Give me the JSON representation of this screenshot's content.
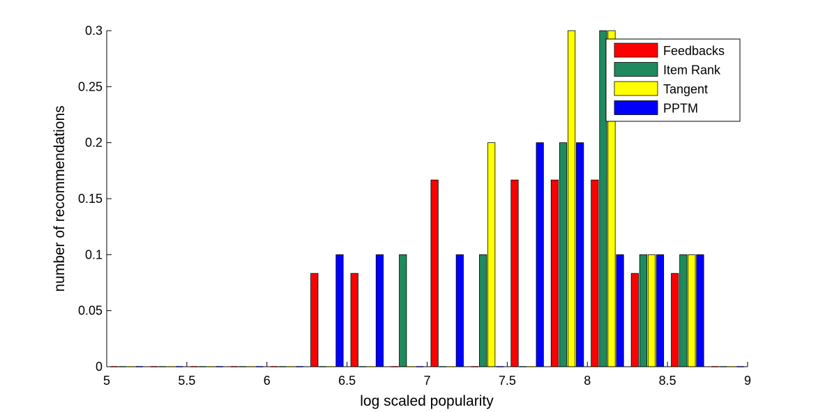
{
  "chart_data": {
    "type": "bar",
    "title": "",
    "xlabel": "log scaled popularity",
    "ylabel": "number of recommendations",
    "xlim": [
      5,
      9
    ],
    "ylim": [
      0,
      0.3
    ],
    "xticks": [
      "5",
      "5.5",
      "6",
      "6.5",
      "7",
      "7.5",
      "8",
      "8.5",
      "9"
    ],
    "yticks": [
      "0",
      "0.05",
      "0.1",
      "0.15",
      "0.2",
      "0.25",
      "0.3"
    ],
    "legend_position": "top-right",
    "bin_centers": [
      5.125,
      5.375,
      5.625,
      5.875,
      6.125,
      6.375,
      6.625,
      6.875,
      7.125,
      7.375,
      7.625,
      7.875,
      8.125,
      8.375,
      8.625,
      8.875
    ],
    "series": [
      {
        "name": "Feedbacks",
        "color": "#ff0000",
        "values": [
          0,
          0,
          0,
          0,
          0,
          0.0833,
          0.0833,
          0,
          0.1667,
          0,
          0.1667,
          0.1667,
          0.1667,
          0.0833,
          0.0833,
          0
        ]
      },
      {
        "name": "Item Rank",
        "color": "#1f8a5e",
        "values": [
          0,
          0,
          0,
          0,
          0,
          0,
          0,
          0.1,
          0,
          0.1,
          0,
          0.2,
          0.3,
          0.1,
          0.1,
          0
        ]
      },
      {
        "name": "Tangent",
        "color": "#ffff00",
        "values": [
          0,
          0,
          0,
          0,
          0,
          0,
          0,
          0,
          0,
          0.2,
          0,
          0.3,
          0.3,
          0.1,
          0.1,
          0
        ]
      },
      {
        "name": "PPTM",
        "color": "#0000ff",
        "values": [
          0,
          0,
          0,
          0,
          0,
          0.1,
          0.1,
          0,
          0.1,
          0,
          0.2,
          0.2,
          0.1,
          0.1,
          0.1,
          0
        ]
      }
    ]
  }
}
